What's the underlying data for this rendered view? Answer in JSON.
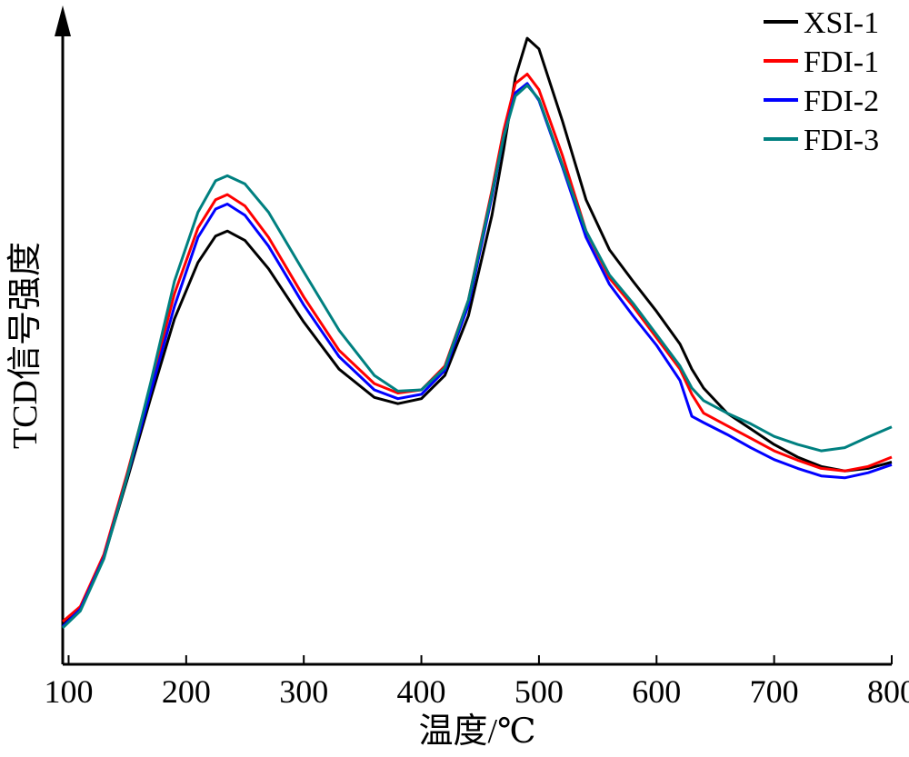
{
  "chart_data": {
    "type": "line",
    "title": "",
    "xlabel": "温度/℃",
    "ylabel": "TCD信号强度",
    "xlim": [
      95,
      800
    ],
    "ylim": [
      0,
      1
    ],
    "xticks": [
      100,
      200,
      300,
      400,
      500,
      600,
      700,
      800
    ],
    "yticks": [],
    "grid": false,
    "legend_position": "top-right",
    "series": [
      {
        "name": "XSI-1",
        "color": "#000000",
        "x": [
          95,
          110,
          130,
          150,
          170,
          190,
          210,
          225,
          235,
          250,
          270,
          300,
          330,
          360,
          380,
          400,
          420,
          440,
          460,
          470,
          480,
          490,
          500,
          520,
          540,
          560,
          580,
          600,
          620,
          630,
          640,
          660,
          680,
          700,
          720,
          740,
          760,
          780,
          800
        ],
        "y": [
          0.063,
          0.088,
          0.17,
          0.295,
          0.425,
          0.55,
          0.64,
          0.682,
          0.69,
          0.675,
          0.63,
          0.545,
          0.47,
          0.425,
          0.415,
          0.423,
          0.46,
          0.555,
          0.715,
          0.82,
          0.935,
          0.997,
          0.98,
          0.865,
          0.74,
          0.66,
          0.61,
          0.562,
          0.51,
          0.47,
          0.44,
          0.4,
          0.375,
          0.35,
          0.33,
          0.315,
          0.308,
          0.312,
          0.322
        ]
      },
      {
        "name": "FDI-1",
        "color": "#ff0000",
        "x": [
          95,
          110,
          130,
          150,
          170,
          190,
          210,
          225,
          235,
          250,
          270,
          300,
          330,
          360,
          380,
          400,
          420,
          440,
          460,
          470,
          480,
          490,
          500,
          520,
          540,
          560,
          580,
          600,
          620,
          630,
          640,
          660,
          680,
          700,
          720,
          740,
          760,
          780,
          800
        ],
        "y": [
          0.068,
          0.092,
          0.175,
          0.305,
          0.445,
          0.59,
          0.695,
          0.74,
          0.748,
          0.73,
          0.68,
          0.585,
          0.5,
          0.447,
          0.432,
          0.437,
          0.475,
          0.58,
          0.755,
          0.85,
          0.925,
          0.94,
          0.915,
          0.81,
          0.69,
          0.615,
          0.57,
          0.52,
          0.47,
          0.43,
          0.4,
          0.38,
          0.36,
          0.34,
          0.325,
          0.312,
          0.308,
          0.315,
          0.33
        ]
      },
      {
        "name": "FDI-2",
        "color": "#0000ff",
        "x": [
          95,
          110,
          130,
          150,
          170,
          190,
          210,
          225,
          235,
          250,
          270,
          300,
          330,
          360,
          380,
          400,
          420,
          440,
          460,
          470,
          480,
          490,
          500,
          520,
          540,
          560,
          580,
          600,
          620,
          630,
          640,
          660,
          680,
          700,
          720,
          740,
          760,
          780,
          800
        ],
        "y": [
          0.06,
          0.088,
          0.17,
          0.3,
          0.435,
          0.57,
          0.68,
          0.725,
          0.733,
          0.715,
          0.666,
          0.572,
          0.49,
          0.437,
          0.423,
          0.43,
          0.468,
          0.572,
          0.745,
          0.84,
          0.91,
          0.925,
          0.898,
          0.792,
          0.68,
          0.605,
          0.555,
          0.508,
          0.452,
          0.395,
          0.385,
          0.366,
          0.345,
          0.326,
          0.312,
          0.3,
          0.297,
          0.305,
          0.318
        ]
      },
      {
        "name": "FDI-3",
        "color": "#008080",
        "x": [
          95,
          110,
          130,
          150,
          170,
          190,
          210,
          225,
          235,
          250,
          270,
          300,
          330,
          360,
          380,
          400,
          420,
          440,
          460,
          470,
          480,
          490,
          500,
          520,
          540,
          560,
          580,
          600,
          620,
          630,
          640,
          660,
          680,
          700,
          720,
          740,
          760,
          780,
          800
        ],
        "y": [
          0.058,
          0.085,
          0.168,
          0.3,
          0.45,
          0.61,
          0.72,
          0.77,
          0.778,
          0.765,
          0.72,
          0.625,
          0.532,
          0.46,
          0.435,
          0.437,
          0.472,
          0.58,
          0.75,
          0.84,
          0.905,
          0.922,
          0.9,
          0.795,
          0.69,
          0.62,
          0.575,
          0.525,
          0.475,
          0.44,
          0.42,
          0.4,
          0.383,
          0.363,
          0.35,
          0.34,
          0.345,
          0.362,
          0.378
        ]
      }
    ]
  }
}
